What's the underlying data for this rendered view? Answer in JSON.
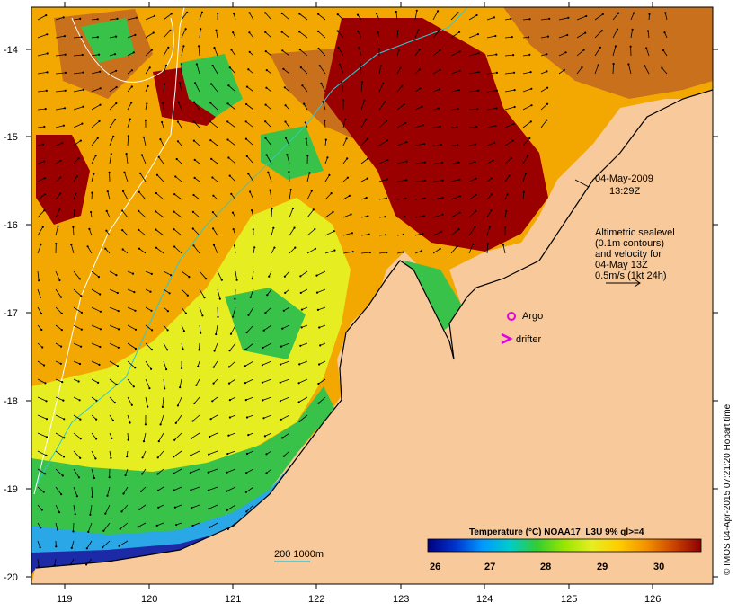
{
  "map": {
    "y_ticks": [
      "-14",
      "-15",
      "-16",
      "-17",
      "-18",
      "-19",
      "-20"
    ],
    "x_ticks": [
      "119",
      "120",
      "121",
      "122",
      "123",
      "124",
      "125",
      "126"
    ],
    "colors": {
      "land": "#f7c99b",
      "very_warm": "#9a0000",
      "warm": "#c9701c",
      "mid": "#f2a800",
      "yellow": "#e6ee22",
      "green": "#39c24a",
      "cool": "#2aa7e6",
      "cold": "#1c2aa8",
      "contour_200": "#2ec8d8",
      "contour_1000": "#ffffff",
      "vector": "#000000"
    }
  },
  "annotations": {
    "date": "04-May-2009",
    "time": "13:29Z",
    "altimetry": [
      "Altimetric sealevel",
      "(0.1m contours)",
      "and velocity for",
      "04-May 13Z",
      "0.5m/s (1kt 24h)"
    ],
    "argo_label": "Argo",
    "drifter_label": "drifter",
    "argo_color": "#e000e0",
    "drifter_color": "#e000e0",
    "isobath_label": "200  1000m"
  },
  "colorbar": {
    "title": "Temperature (°C) NOAA17_L3U 9% ql>=4",
    "ticks": [
      "26",
      "27",
      "28",
      "29",
      "30"
    ],
    "stops": [
      "#000080",
      "#0033cc",
      "#0099ff",
      "#00cccc",
      "#33cc33",
      "#99e600",
      "#e6ee22",
      "#ffcc00",
      "#f29100",
      "#cc4400",
      "#8b0000"
    ]
  },
  "credit": "© IMOS 04-Apr-2015 07:21:20 Hobart time"
}
